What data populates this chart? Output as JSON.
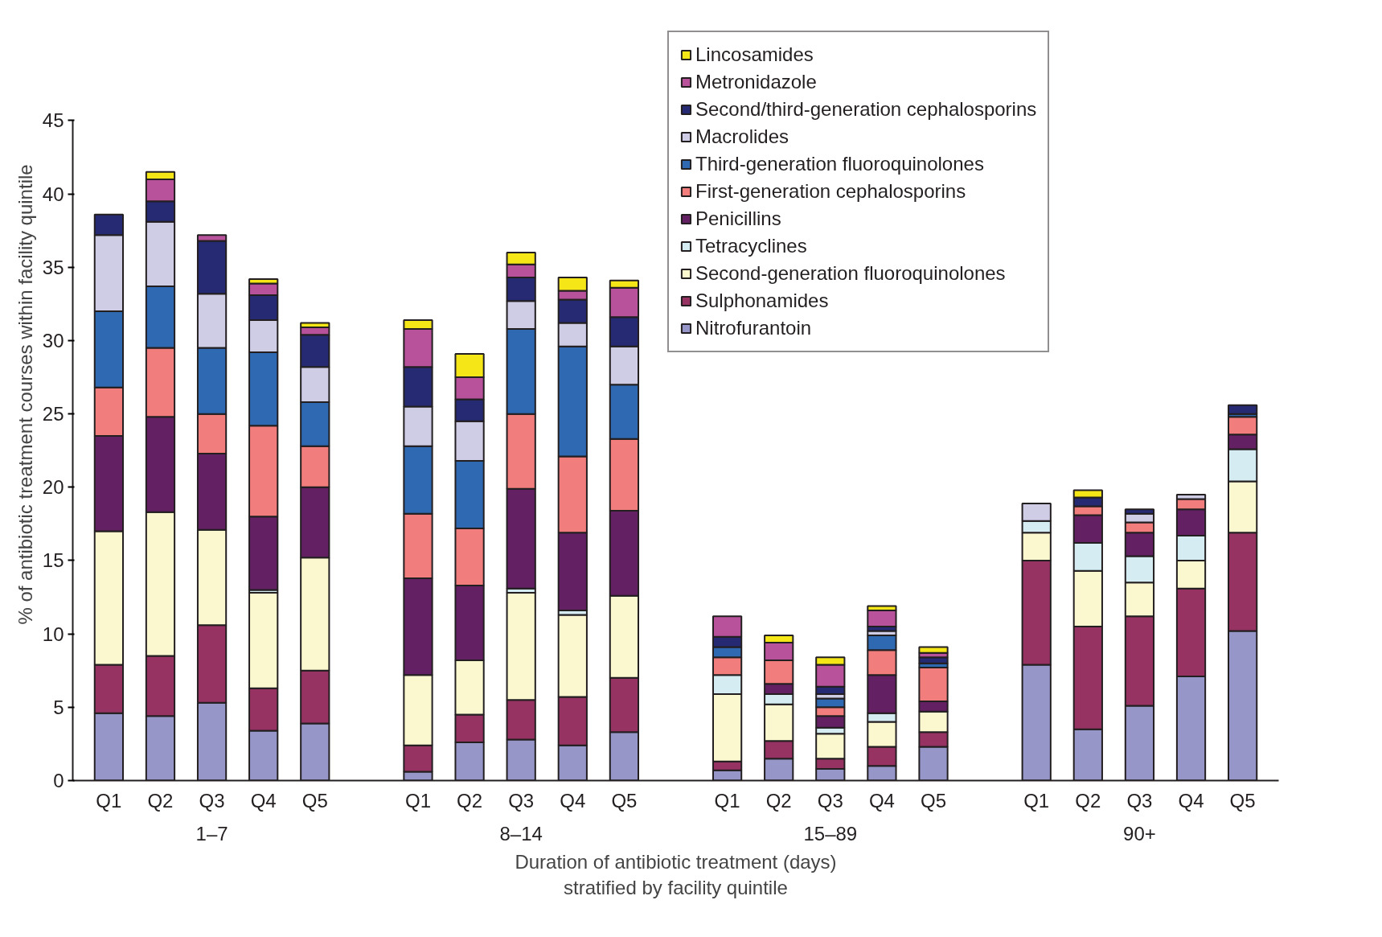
{
  "chart_data": {
    "type": "bar",
    "stacked": true,
    "ylabel": "% of antibiotic treatment courses within facility quintile",
    "xlabel": "Duration of antibiotic treatment (days)\nstratified by facility quintile",
    "categories": [
      "Q1",
      "Q2",
      "Q3",
      "Q4",
      "Q5",
      "Q1",
      "Q2",
      "Q3",
      "Q4",
      "Q5",
      "Q1",
      "Q2",
      "Q3",
      "Q4",
      "Q5",
      "Q1",
      "Q2",
      "Q3",
      "Q4",
      "Q5"
    ],
    "annotations": [
      "1–7",
      "8–14",
      "15–89",
      "90+"
    ],
    "ylim": [
      0,
      45
    ],
    "yticks": [
      0,
      5,
      10,
      15,
      20,
      25,
      30,
      35,
      40,
      45
    ],
    "legend": "top right",
    "series": [
      {
        "name": "Nitrofurantoin",
        "color": "#9696c8",
        "values": [
          4.6,
          4.4,
          5.3,
          3.4,
          3.9,
          0.6,
          2.6,
          2.8,
          2.4,
          3.3,
          0.7,
          1.5,
          0.8,
          1.0,
          2.3,
          7.9,
          3.5,
          5.1,
          7.1,
          10.2
        ]
      },
      {
        "name": "Sulphonamides",
        "color": "#973363",
        "values": [
          3.3,
          4.1,
          5.3,
          2.9,
          3.6,
          1.8,
          1.9,
          2.7,
          3.3,
          3.7,
          0.6,
          1.2,
          0.7,
          1.3,
          1.0,
          7.1,
          7.0,
          6.1,
          6.0,
          6.7
        ]
      },
      {
        "name": "Second-generation fluoroquinolones",
        "color": "#fbf8d0",
        "values": [
          9.1,
          9.8,
          6.5,
          6.5,
          7.7,
          4.8,
          3.7,
          7.3,
          5.6,
          5.6,
          4.6,
          2.5,
          1.7,
          1.7,
          1.4,
          1.9,
          3.8,
          2.3,
          1.9,
          3.5
        ]
      },
      {
        "name": "Tetracyclines",
        "color": "#d4ecf2",
        "values": [
          null,
          null,
          null,
          0.2,
          null,
          null,
          null,
          0.3,
          0.3,
          null,
          1.3,
          0.7,
          0.4,
          0.6,
          null,
          0.8,
          1.9,
          1.8,
          1.7,
          2.2
        ]
      },
      {
        "name": "Penicillins",
        "color": "#632063",
        "values": [
          6.5,
          6.5,
          5.2,
          5.0,
          4.8,
          6.6,
          5.1,
          6.8,
          5.3,
          5.8,
          null,
          0.7,
          0.8,
          2.6,
          0.7,
          null,
          1.9,
          1.6,
          1.8,
          1.0
        ]
      },
      {
        "name": "First-generation cephalosporins",
        "color": "#f27d7d",
        "values": [
          3.3,
          4.7,
          2.7,
          6.2,
          2.8,
          4.4,
          3.9,
          5.1,
          5.2,
          4.9,
          1.2,
          1.6,
          0.6,
          1.7,
          2.3,
          null,
          0.6,
          0.7,
          0.7,
          1.2
        ]
      },
      {
        "name": "Third-generation fluoroquinolones",
        "color": "#2e69b1",
        "values": [
          5.2,
          4.2,
          4.5,
          5.0,
          3.0,
          4.6,
          4.6,
          5.8,
          7.5,
          3.7,
          0.7,
          null,
          0.6,
          1.0,
          0.3,
          null,
          null,
          null,
          null,
          0.2
        ]
      },
      {
        "name": "Macrolides",
        "color": "#cfcce6",
        "values": [
          5.2,
          4.4,
          3.7,
          2.2,
          2.4,
          2.7,
          2.7,
          1.9,
          1.6,
          2.6,
          null,
          null,
          0.3,
          0.3,
          null,
          1.2,
          null,
          0.6,
          0.3,
          null
        ]
      },
      {
        "name": "Second/third-generation cephalosporins",
        "color": "#262a72",
        "values": [
          1.4,
          1.4,
          3.6,
          1.7,
          2.2,
          2.7,
          1.5,
          1.6,
          1.6,
          2.0,
          0.7,
          null,
          0.5,
          0.3,
          0.4,
          null,
          0.6,
          0.3,
          null,
          0.6
        ]
      },
      {
        "name": "Metronidazole",
        "color": "#b8529b",
        "values": [
          null,
          1.5,
          0.4,
          0.8,
          0.5,
          2.6,
          1.5,
          0.9,
          0.6,
          2.0,
          1.4,
          1.2,
          1.5,
          1.1,
          0.3,
          null,
          null,
          null,
          null,
          null
        ]
      },
      {
        "name": "Lincosamides",
        "color": "#f5e618",
        "values": [
          null,
          0.5,
          null,
          0.3,
          0.3,
          0.6,
          1.6,
          0.8,
          0.9,
          0.5,
          null,
          0.5,
          0.5,
          0.3,
          0.4,
          null,
          0.5,
          null,
          null,
          null
        ]
      }
    ]
  }
}
